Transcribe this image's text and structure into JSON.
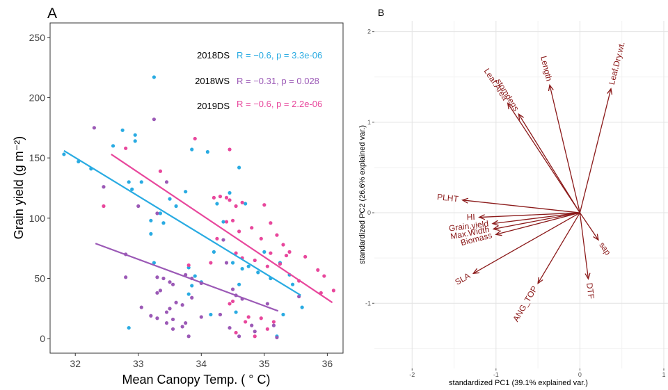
{
  "chart_data": [
    {
      "type": "scatter",
      "panel_label": "A",
      "xlabel": "Mean Canopy Temp. ( ° C)",
      "ylabel": "Grain yield (g m⁻²)",
      "xlim": [
        31.6,
        36.25
      ],
      "ylim": [
        -12,
        262
      ],
      "xticks": [
        32,
        33,
        34,
        35,
        36
      ],
      "yticks": [
        0,
        50,
        100,
        150,
        200,
        250
      ],
      "grid": false,
      "series": [
        {
          "name": "2018DS",
          "color": "#29abe2",
          "stat": "R = −0.6, p = 3.3e-06",
          "trend": [
            [
              31.82,
              156
            ],
            [
              35.58,
              36
            ]
          ],
          "points": [
            [
              31.82,
              153
            ],
            [
              32.05,
              147
            ],
            [
              32.25,
              141
            ],
            [
              32.6,
              160
            ],
            [
              32.75,
              173
            ],
            [
              32.95,
              169
            ],
            [
              32.95,
              164
            ],
            [
              33.25,
              217
            ],
            [
              32.85,
              130
            ],
            [
              33.05,
              130
            ],
            [
              32.9,
              124
            ],
            [
              33.2,
              98
            ],
            [
              33.35,
              104
            ],
            [
              33.4,
              96
            ],
            [
              33.5,
              116
            ],
            [
              33.2,
              87
            ],
            [
              33.6,
              110
            ],
            [
              33.75,
              122
            ],
            [
              33.85,
              157
            ],
            [
              34.1,
              155
            ],
            [
              34.25,
              112
            ],
            [
              34.35,
              97
            ],
            [
              34.45,
              121
            ],
            [
              34.6,
              142
            ],
            [
              34.7,
              112
            ],
            [
              33.8,
              59
            ],
            [
              33.9,
              52
            ],
            [
              33.25,
              63
            ],
            [
              33.85,
              44
            ],
            [
              34.0,
              47
            ],
            [
              34.2,
              72
            ],
            [
              34.5,
              63
            ],
            [
              34.65,
              58
            ],
            [
              34.75,
              60
            ],
            [
              34.9,
              55
            ],
            [
              35.1,
              50
            ],
            [
              34.55,
              22
            ],
            [
              34.15,
              20
            ],
            [
              35.0,
              72
            ],
            [
              35.25,
              63
            ],
            [
              35.4,
              53
            ],
            [
              35.45,
              45
            ],
            [
              35.6,
              26
            ],
            [
              35.3,
              20
            ],
            [
              32.85,
              9
            ],
            [
              33.8,
              37
            ],
            [
              34.6,
              45
            ],
            [
              35.2,
              2
            ]
          ]
        },
        {
          "name": "2018WS",
          "color": "#9b59b6",
          "stat": "R = −0.31, p = 0.028",
          "trend": [
            [
              32.32,
              79
            ],
            [
              35.22,
              23
            ]
          ],
          "points": [
            [
              32.3,
              175
            ],
            [
              32.45,
              126
            ],
            [
              32.8,
              70
            ],
            [
              32.8,
              51
            ],
            [
              33.25,
              182
            ],
            [
              33.0,
              110
            ],
            [
              33.3,
              51
            ],
            [
              33.4,
              50
            ],
            [
              33.5,
              47
            ],
            [
              33.35,
              40
            ],
            [
              33.55,
              45
            ],
            [
              33.3,
              38
            ],
            [
              33.7,
              28
            ],
            [
              33.5,
              25
            ],
            [
              33.6,
              30
            ],
            [
              33.75,
              53
            ],
            [
              33.85,
              50
            ],
            [
              34.0,
              46
            ],
            [
              33.85,
              34
            ],
            [
              33.45,
              22
            ],
            [
              33.55,
              16
            ],
            [
              33.2,
              19
            ],
            [
              33.3,
              17
            ],
            [
              33.45,
              13
            ],
            [
              33.55,
              8
            ],
            [
              33.7,
              10
            ],
            [
              33.8,
              2
            ],
            [
              33.75,
              13
            ],
            [
              34.0,
              18
            ],
            [
              33.05,
              26
            ],
            [
              34.4,
              63
            ],
            [
              34.5,
              41
            ],
            [
              34.55,
              36
            ],
            [
              34.65,
              33
            ],
            [
              34.3,
              20
            ],
            [
              34.45,
              9
            ],
            [
              34.6,
              2
            ],
            [
              34.8,
              11
            ],
            [
              35.05,
              29
            ],
            [
              35.15,
              11
            ],
            [
              35.2,
              1
            ],
            [
              34.85,
              6
            ],
            [
              34.35,
              82
            ],
            [
              33.45,
              130
            ],
            [
              33.3,
              104
            ],
            [
              35.55,
              35
            ]
          ]
        },
        {
          "name": "2019DS",
          "color": "#e8479c",
          "stat": "R = −0.6, p = 2.2e-06",
          "trend": [
            [
              32.57,
              153
            ],
            [
              36.08,
              30
            ]
          ],
          "points": [
            [
              32.8,
              158
            ],
            [
              32.45,
              110
            ],
            [
              33.35,
              139
            ],
            [
              33.9,
              166
            ],
            [
              34.2,
              117
            ],
            [
              34.3,
              118
            ],
            [
              34.4,
              117
            ],
            [
              34.45,
              115
            ],
            [
              34.55,
              110
            ],
            [
              34.45,
              157
            ],
            [
              34.65,
              113
            ],
            [
              34.5,
              98
            ],
            [
              34.8,
              92
            ],
            [
              34.4,
              97
            ],
            [
              34.25,
              83
            ],
            [
              34.15,
              63
            ],
            [
              33.8,
              61
            ],
            [
              34.55,
              71
            ],
            [
              34.65,
              67
            ],
            [
              34.85,
              65
            ],
            [
              35.0,
              111
            ],
            [
              35.1,
              96
            ],
            [
              35.2,
              86
            ],
            [
              35.3,
              78
            ],
            [
              35.35,
              69
            ],
            [
              35.4,
              72
            ],
            [
              35.25,
              62
            ],
            [
              35.55,
              48
            ],
            [
              35.65,
              68
            ],
            [
              35.85,
              57
            ],
            [
              35.95,
              52
            ],
            [
              36.1,
              40
            ],
            [
              35.9,
              38
            ],
            [
              34.45,
              29
            ],
            [
              34.5,
              31
            ],
            [
              34.7,
              14
            ],
            [
              34.75,
              18
            ],
            [
              34.95,
              17
            ],
            [
              35.05,
              8
            ],
            [
              35.15,
              14
            ],
            [
              34.85,
              2
            ],
            [
              34.55,
              5
            ],
            [
              34.95,
              83
            ],
            [
              35.05,
              60
            ],
            [
              34.6,
              89
            ],
            [
              35.1,
              71
            ]
          ]
        }
      ]
    },
    {
      "type": "biplot",
      "panel_label": "B",
      "xlabel": "standardized PC1 (39.1% explained var.)",
      "ylabel": "standardized PC2 (26.6% explained var.)",
      "xlim": [
        -2.45,
        1.05
      ],
      "ylim": [
        -1.72,
        2.12
      ],
      "xticks": [
        -2,
        -1,
        0,
        1
      ],
      "yticks": [
        -1,
        0,
        1,
        2
      ],
      "grid": true,
      "arrow_color": "#8b1a1a",
      "arrows": [
        {
          "label": "Leaf.Dry.wt.",
          "x": 0.37,
          "y": 1.37
        },
        {
          "label": "Length",
          "x": -0.36,
          "y": 1.41
        },
        {
          "label": "stomdens",
          "x": -0.73,
          "y": 1.09
        },
        {
          "label": "Leaf.Area",
          "x": -0.86,
          "y": 1.21
        },
        {
          "label": "PLHT",
          "x": -1.4,
          "y": 0.14
        },
        {
          "label": "HI",
          "x": -1.2,
          "y": -0.05
        },
        {
          "label": "Grain.yield",
          "x": -1.04,
          "y": -0.12
        },
        {
          "label": "Max.Width",
          "x": -1.03,
          "y": -0.18
        },
        {
          "label": "Biomass",
          "x": -1.0,
          "y": -0.24
        },
        {
          "label": "SLA",
          "x": -1.27,
          "y": -0.67
        },
        {
          "label": "ANG_TOP",
          "x": -0.5,
          "y": -0.78
        },
        {
          "label": "DTF",
          "x": 0.1,
          "y": -0.73
        },
        {
          "label": "sap",
          "x": 0.22,
          "y": -0.3
        }
      ]
    }
  ]
}
